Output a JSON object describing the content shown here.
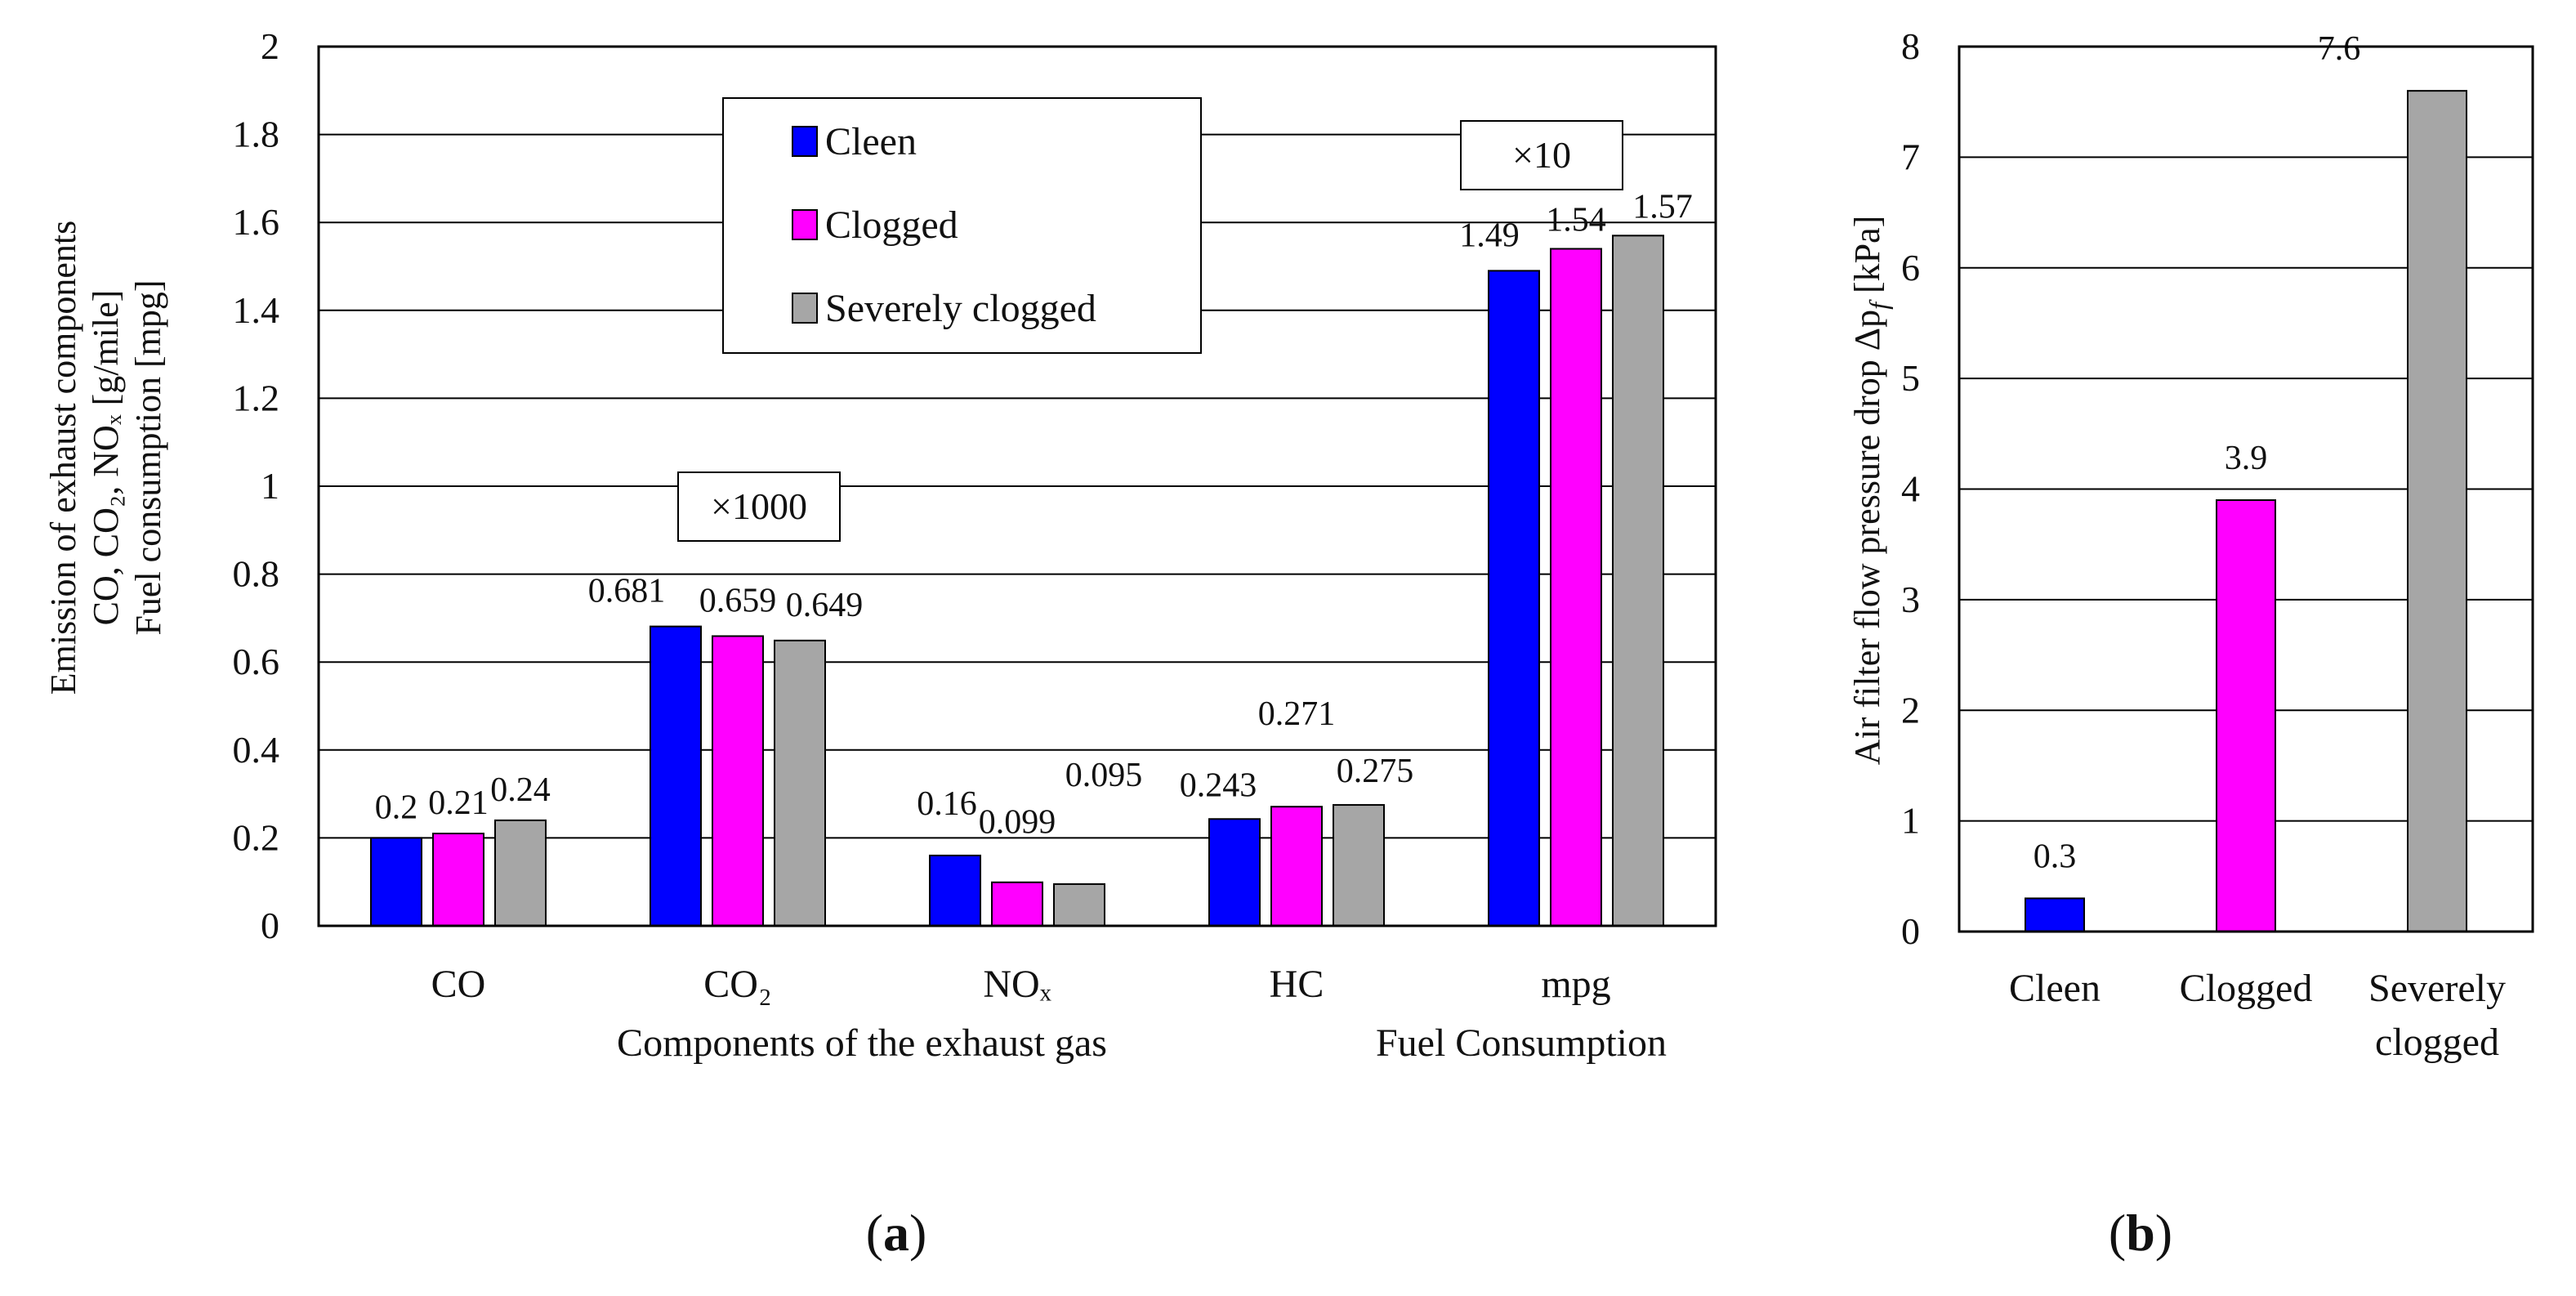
{
  "chart_data": [
    {
      "id": "a",
      "type": "bar",
      "panel_label": "a",
      "title": "",
      "ylabel_lines": [
        "Emission of exhaust components",
        "CO, CO₂, NOₓ [g/mile]",
        "Fuel consumption [mpg]"
      ],
      "xlabel_left": "Components of the exhaust gas",
      "xlabel_right": "Fuel Consumption",
      "ylim": [
        0,
        2
      ],
      "yticks": [
        "0",
        "0.2",
        "0.4",
        "0.6",
        "0.8",
        "1",
        "1.2",
        "1.4",
        "1.6",
        "1.8",
        "2"
      ],
      "grid": true,
      "legend_position": "top-center",
      "categories": [
        "CO",
        "CO₂",
        "NOₓ",
        "HC",
        "mpg"
      ],
      "series": [
        {
          "name": "Cleen",
          "color": "#0000ff",
          "values": [
            0.2,
            0.681,
            0.16,
            0.243,
            1.49
          ],
          "labels": [
            "0.2",
            "0.681",
            "0.16",
            "0.243",
            "1.49"
          ]
        },
        {
          "name": "Clogged",
          "color": "#ff00ff",
          "values": [
            0.21,
            0.659,
            0.099,
            0.271,
            1.54
          ],
          "labels": [
            "0.21",
            "0.659",
            "0.099",
            "0.271",
            "1.54"
          ]
        },
        {
          "name": "Severely clogged",
          "color": "#a6a6a6",
          "values": [
            0.24,
            0.649,
            0.095,
            0.275,
            1.57
          ],
          "labels": [
            "0.24",
            "0.649",
            "0.095",
            "0.275",
            "1.57"
          ]
        }
      ],
      "annotations": [
        {
          "text": "×1000",
          "category": "CO₂"
        },
        {
          "text": "×10",
          "category": "mpg"
        }
      ]
    },
    {
      "id": "b",
      "type": "bar",
      "panel_label": "b",
      "title": "",
      "ylabel": "Air filter flow pressure drop Δp",
      "ylabel_sub": "f",
      "ylabel_unit": "[kPa]",
      "ylim": [
        0,
        8
      ],
      "yticks": [
        "0",
        "1",
        "2",
        "3",
        "4",
        "5",
        "6",
        "7",
        "8"
      ],
      "grid": true,
      "categories": [
        "Cleen",
        "Clogged",
        "Severely clogged"
      ],
      "category_lines": [
        [
          "Cleen"
        ],
        [
          "Clogged"
        ],
        [
          "Severely",
          "clogged"
        ]
      ],
      "values": [
        0.3,
        3.9,
        7.6
      ],
      "labels": [
        "0.3",
        "3.9",
        "7.6"
      ],
      "colors": [
        "#0000ff",
        "#ff00ff",
        "#a6a6a6"
      ]
    }
  ]
}
